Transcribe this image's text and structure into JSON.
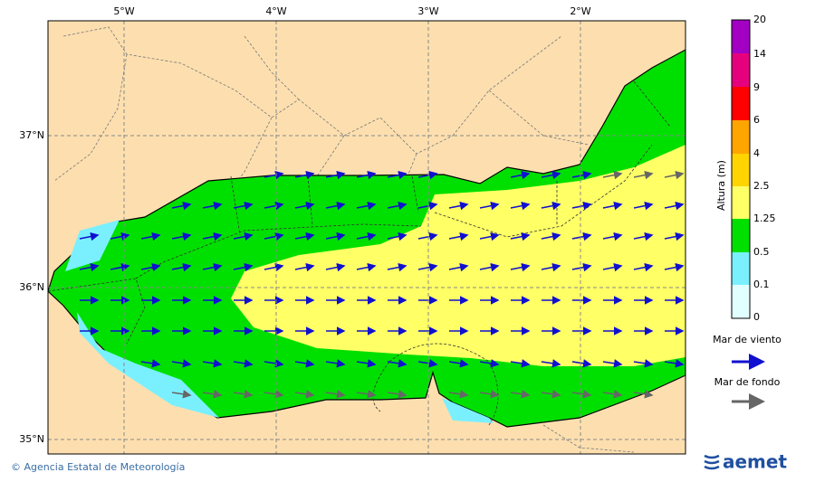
{
  "map": {
    "lon_labels": [
      "5°W",
      "4°W",
      "3°W",
      "2°W"
    ],
    "lat_labels": [
      "37°N",
      "36°N",
      "35°N"
    ]
  },
  "legend": {
    "title": "Altura (m)",
    "levels": [
      20,
      14,
      9,
      6,
      4,
      2.5,
      1.25,
      0.5,
      0.1,
      0
    ],
    "wind_sea": "Mar de viento",
    "swell": "Mar de fondo"
  },
  "footer": {
    "credit": "© Agencia Estatal de Meteorología",
    "logo": "aemet"
  }
}
